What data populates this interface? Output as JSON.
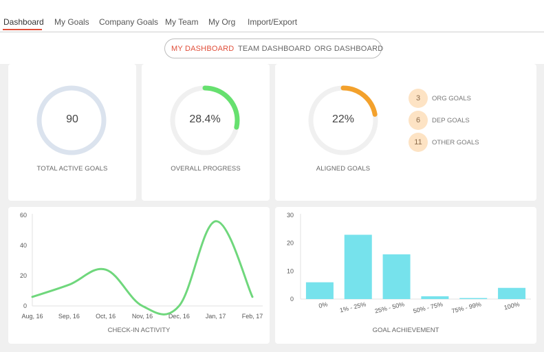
{
  "nav": {
    "tabs": [
      "Dashboard",
      "My Goals",
      "Company Goals",
      "My Team",
      "My Org",
      "Import/Export"
    ],
    "active": "Dashboard"
  },
  "subnav": {
    "tabs": [
      "MY DASHBOARD",
      "TEAM DASHBOARD",
      "ORG DASHBOARD"
    ],
    "active": "MY DASHBOARD"
  },
  "widgets": {
    "total_active_goals": {
      "value": "90",
      "caption": "TOTAL ACTIVE GOALS"
    },
    "overall_progress": {
      "value": "28.4%",
      "progress": 0.284,
      "caption": "OVERALL PROGRESS"
    },
    "aligned_goals": {
      "value": "22%",
      "progress": 0.22,
      "caption": "ALIGNED GOALS",
      "breakdown": [
        {
          "count": "3",
          "label": "ORG GOALS"
        },
        {
          "count": "6",
          "label": "DEP GOALS"
        },
        {
          "count": "11",
          "label": "OTHER GOALS"
        }
      ]
    }
  },
  "colors": {
    "accent": "#e04e39",
    "ring_total": "#dbe3ee",
    "ring_track": "#f0f0f0",
    "ring_progress": "#66e06f",
    "ring_aligned": "#f3a12c",
    "badge_bg": "#fde3c4",
    "line": "#6fd77c",
    "bar": "#76e2ec"
  },
  "chart_data": [
    {
      "type": "line",
      "x": [
        "Aug, 16",
        "Sep, 16",
        "Oct, 16",
        "Nov, 16",
        "Dec, 16",
        "Jan, 17",
        "Feb, 17"
      ],
      "y": [
        6,
        14,
        24,
        0,
        0,
        56,
        6
      ],
      "xlabel": "CHECK-IN ACTIVITY",
      "yticks": [
        0,
        20,
        40,
        60
      ],
      "ylim": [
        0,
        60
      ]
    },
    {
      "type": "bar",
      "categories": [
        "0%",
        "1% - 25%",
        "25% - 50%",
        "50% - 75%",
        "75% - 99%",
        "100%"
      ],
      "values": [
        6,
        23,
        16,
        1,
        0,
        4
      ],
      "xlabel": "GOAL ACHIEVEMENT",
      "yticks": [
        0,
        10,
        20,
        30
      ],
      "ylim": [
        0,
        30
      ]
    }
  ]
}
